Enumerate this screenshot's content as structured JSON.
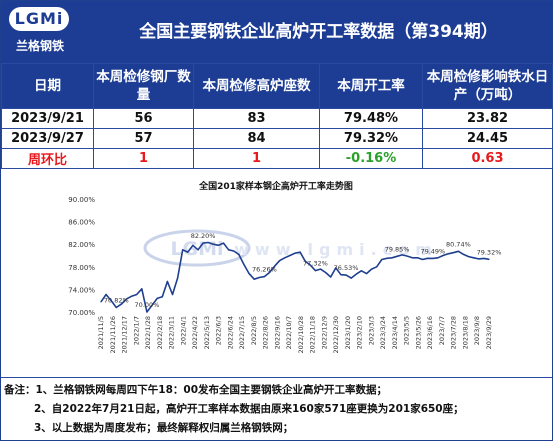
{
  "header": {
    "logo_text": "LGMi",
    "logo_sub": "兰格钢铁",
    "title": "全国主要钢铁企业高炉开工率数据（第394期）"
  },
  "table": {
    "columns": [
      "日期",
      "本周检修钢厂数量",
      "本周检修高炉座数",
      "本周开工率",
      "本周检修影响铁水日产（万吨）"
    ],
    "rows": [
      [
        "2023/9/21",
        "56",
        "83",
        "79.48%",
        "23.82"
      ],
      [
        "2023/9/27",
        "57",
        "84",
        "79.32%",
        "24.45"
      ],
      [
        "周环比",
        "1",
        "1",
        "-0.16%",
        "0.63"
      ]
    ]
  },
  "chart_data": {
    "type": "line",
    "title": "全国201家样本钢企高炉开工率走势图",
    "ylim": [
      70,
      90
    ],
    "y_ticks": [
      "70.00%",
      "74.00%",
      "78.00%",
      "82.00%",
      "86.00%",
      "90.00%"
    ],
    "x_tick_labels": [
      "2021/11/5",
      "2021/11/26",
      "2021/12/17",
      "2022/1/7",
      "2022/1/28",
      "2022/2/18",
      "2022/3/11",
      "2022/4/1",
      "2022/4/22",
      "2022/5/13",
      "2022/6/3",
      "2022/6/24",
      "2022/7/15",
      "2022/8/5",
      "2022/8/26",
      "2022/9/16",
      "2022/10/7",
      "2022/10/28",
      "2022/11/18",
      "2022/12/9",
      "2022/12/30",
      "2023/1/20",
      "2023/2/10",
      "2023/3/3",
      "2023/3/24",
      "2023/4/14",
      "2023/5/5",
      "2023/5/26",
      "2023/6/16",
      "2023/7/7",
      "2023/7/28",
      "2023/8/18",
      "2023/9/8",
      "2023/9/29"
    ],
    "series": [
      {
        "color": "#1f3f8f",
        "values": [
          71.8,
          73.1,
          72.0,
          70.8,
          71.4,
          72.3,
          72.8,
          73.1,
          74.1,
          70.0,
          71.2,
          72.4,
          72.7,
          75.4,
          73.1,
          76.0,
          81.0,
          80.6,
          81.8,
          81.0,
          82.2,
          82.3,
          82.0,
          81.8,
          82.2,
          81.0,
          80.8,
          80.2,
          78.4,
          76.8,
          75.8,
          76.1,
          76.26,
          77.0,
          78.1,
          79.1,
          79.6,
          80.0,
          80.4,
          80.6,
          79.0,
          78.3,
          77.32,
          77.6,
          77.0,
          76.2,
          77.8,
          76.6,
          76.53,
          76.0,
          76.7,
          77.3,
          76.8,
          77.6,
          78.0,
          79.3,
          79.5,
          79.6,
          79.85,
          80.1,
          79.9,
          79.6,
          79.6,
          79.3,
          79.5,
          79.49,
          79.6,
          80.0,
          80.3,
          80.5,
          80.74,
          80.2,
          79.8,
          79.6,
          79.4,
          79.48,
          79.32
        ]
      }
    ],
    "annotations": [
      {
        "index": 3,
        "label": "70.82%"
      },
      {
        "index": 9,
        "label": "70.00%"
      },
      {
        "index": 20,
        "label": "82.20%"
      },
      {
        "index": 32,
        "label": "76.26%"
      },
      {
        "index": 42,
        "label": "77.32%"
      },
      {
        "index": 48,
        "label": "76.53%"
      },
      {
        "index": 58,
        "label": "79.85%"
      },
      {
        "index": 65,
        "label": "79.49%"
      },
      {
        "index": 70,
        "label": "80.74%"
      },
      {
        "index": 76,
        "label": "79.32%"
      }
    ],
    "grid": false,
    "watermark": "LGMi www.lgmi.com"
  },
  "notes": [
    "备注：1、兰格钢铁网每周四下午18：00发布全国主要钢铁企业高炉开工率数据；",
    "2、自2022年7月21日起，高炉开工率样本数据由原来160家571座更换为201家650座；",
    "3、以上数据为周度发布；最终解释权归属兰格钢铁网；"
  ],
  "colors": {
    "brand": "#1d3d94",
    "up": "#e8191d",
    "down": "#2aa12a"
  }
}
